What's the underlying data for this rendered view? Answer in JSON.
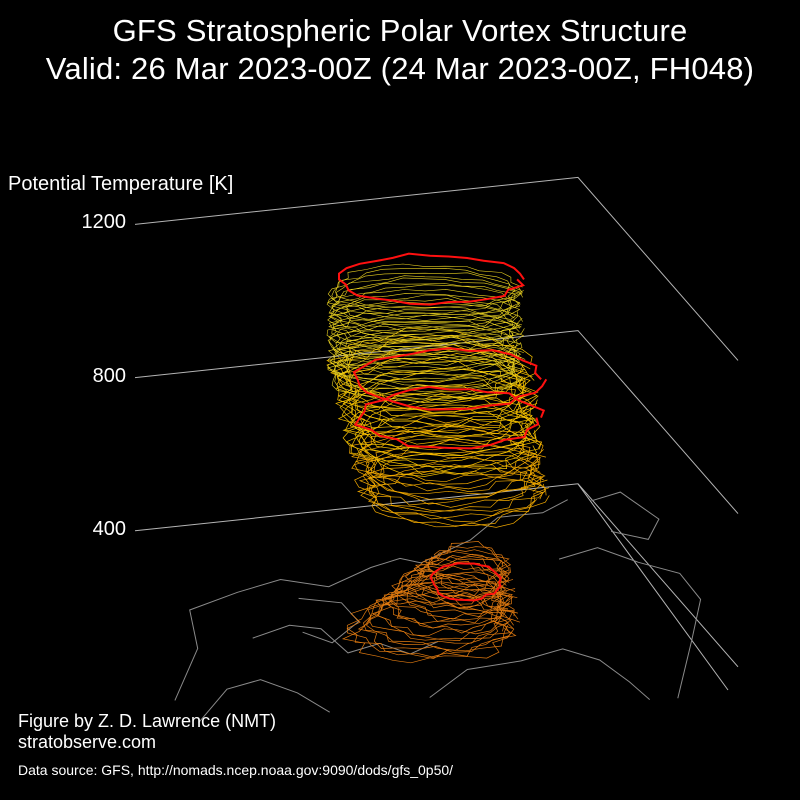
{
  "title": {
    "line1": "GFS Stratospheric Polar Vortex Structure",
    "line2": "Valid: 26 Mar 2023-00Z  (24 Mar 2023-00Z, FH048)"
  },
  "chart_data": {
    "type": "3d-isosurface",
    "ylabel": "Potential Temperature [K]",
    "zticks": [
      400,
      800,
      1200
    ],
    "zlim": [
      200,
      1200
    ],
    "isentropic_levels": [
      {
        "theta": 450,
        "highlight": true
      },
      {
        "theta": 600,
        "highlight": false
      },
      {
        "theta": 700,
        "highlight": false
      },
      {
        "theta": 800,
        "highlight": true
      },
      {
        "theta": 900,
        "highlight": true
      },
      {
        "theta": 1100,
        "highlight": false
      },
      {
        "theta": 1200,
        "highlight": true
      }
    ],
    "colors": {
      "low": "#e07a10",
      "mid": "#f0a800",
      "high": "#e8d020",
      "highlight": "#ff1010",
      "map": "#8a8a8a",
      "axes": "#b4b4b4"
    }
  },
  "credit": {
    "line1": "Figure by Z. D. Lawrence (NMT)",
    "line2": "stratobserve.com"
  },
  "source": "Data source: GFS, http://nomads.ncep.noaa.gov:9090/dods/gfs_0p50/"
}
